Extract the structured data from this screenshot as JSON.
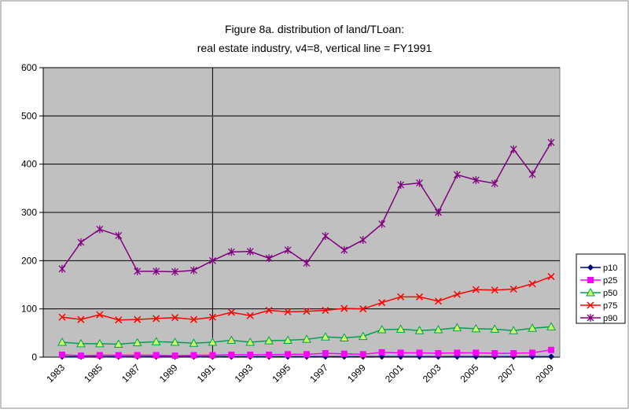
{
  "chart_data": {
    "type": "line",
    "title": [
      "Figure 8a. distribution of  land/TLoan:",
      "real estate industry, v4=8, vertical line = FY1991"
    ],
    "categories": [
      "1983",
      null,
      "1985",
      null,
      "1987",
      null,
      "1989",
      null,
      "1991",
      null,
      "1993",
      null,
      "1995",
      null,
      "1997",
      null,
      "1999",
      null,
      "2001",
      null,
      "2003",
      null,
      "2005",
      null,
      "2007",
      null,
      "2009"
    ],
    "vline_category": "1991",
    "ylim": [
      0,
      600
    ],
    "yticks": [
      0,
      100,
      200,
      300,
      400,
      500,
      600
    ],
    "grid": true,
    "legend": "right",
    "series": [
      {
        "name": "p10",
        "color": "#000080",
        "marker": "diamond",
        "values": [
          1,
          1,
          1,
          1,
          1,
          1,
          1,
          1,
          1,
          1,
          1,
          1,
          1,
          1,
          1,
          1,
          1,
          1,
          1,
          1,
          1,
          1,
          1,
          1,
          1,
          1,
          1
        ]
      },
      {
        "name": "p25",
        "color": "#ff00ff",
        "marker": "square",
        "values": [
          5,
          3,
          4,
          4,
          4,
          4,
          3,
          4,
          4,
          5,
          5,
          5,
          6,
          6,
          8,
          7,
          6,
          10,
          9,
          9,
          8,
          9,
          9,
          8,
          8,
          9,
          15
        ]
      },
      {
        "name": "p50",
        "color": "#00a050",
        "marker": "triangle",
        "values": [
          31,
          28,
          28,
          27,
          30,
          32,
          31,
          29,
          31,
          35,
          31,
          34,
          35,
          37,
          42,
          40,
          43,
          57,
          58,
          55,
          57,
          61,
          59,
          58,
          55,
          60,
          63
        ]
      },
      {
        "name": "p75",
        "color": "#ff0000",
        "marker": "x",
        "values": [
          83,
          78,
          88,
          77,
          78,
          80,
          82,
          78,
          83,
          93,
          86,
          97,
          94,
          95,
          97,
          101,
          100,
          113,
          125,
          125,
          116,
          130,
          140,
          139,
          141,
          152,
          167
        ]
      },
      {
        "name": "p90",
        "color": "#800080",
        "marker": "star",
        "values": [
          183,
          238,
          265,
          252,
          178,
          178,
          177,
          180,
          200,
          218,
          219,
          205,
          222,
          195,
          251,
          222,
          243,
          276,
          357,
          361,
          300,
          378,
          367,
          360,
          431,
          379,
          445
        ]
      }
    ]
  }
}
